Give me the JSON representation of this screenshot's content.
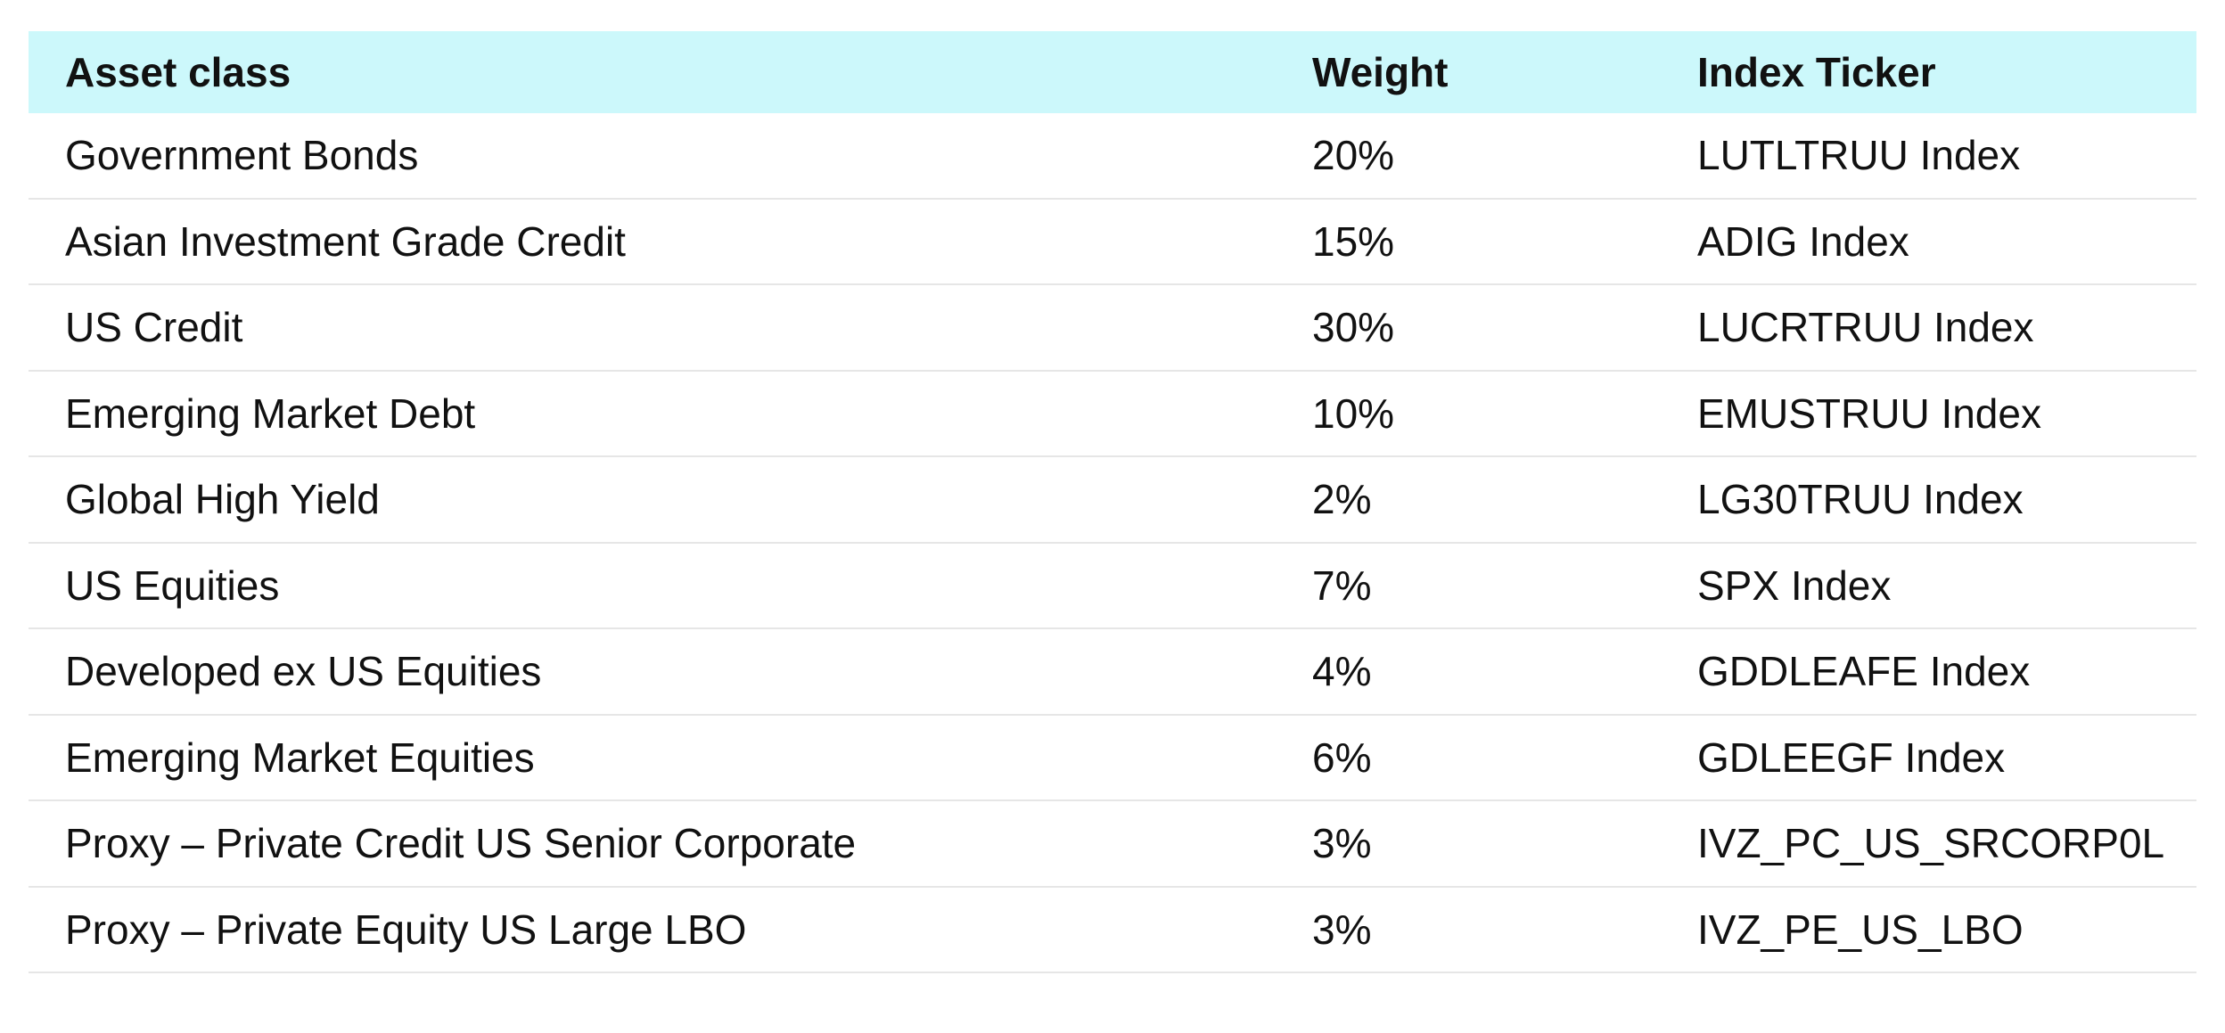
{
  "table": {
    "headers": {
      "asset_class": "Asset class",
      "weight": "Weight",
      "index_ticker": "Index Ticker"
    },
    "rows": [
      {
        "asset_class": "Government Bonds",
        "weight": "20%",
        "index_ticker": "LUTLTRUU Index"
      },
      {
        "asset_class": "Asian Investment Grade Credit",
        "weight": "15%",
        "index_ticker": "ADIG Index"
      },
      {
        "asset_class": "US Credit",
        "weight": "30%",
        "index_ticker": "LUCRTRUU Index"
      },
      {
        "asset_class": "Emerging Market Debt",
        "weight": "10%",
        "index_ticker": "EMUSTRUU Index"
      },
      {
        "asset_class": "Global High Yield",
        "weight": "2%",
        "index_ticker": "LG30TRUU Index"
      },
      {
        "asset_class": "US Equities",
        "weight": "7%",
        "index_ticker": "SPX Index"
      },
      {
        "asset_class": "Developed ex US Equities",
        "weight": "4%",
        "index_ticker": "GDDLEAFE Index"
      },
      {
        "asset_class": "Emerging Market Equities",
        "weight": "6%",
        "index_ticker": "GDLEEGF Index"
      },
      {
        "asset_class": "Proxy – Private Credit US Senior Corporate",
        "weight": "3%",
        "index_ticker": "IVZ_PC_US_SRCORP0L"
      },
      {
        "asset_class": "Proxy – Private Equity US Large LBO",
        "weight": "3%",
        "index_ticker": "IVZ_PE_US_LBO"
      }
    ]
  },
  "colors": {
    "header_background": "#ccf8fb",
    "row_divider": "#e6e6e6",
    "text": "#111111"
  }
}
